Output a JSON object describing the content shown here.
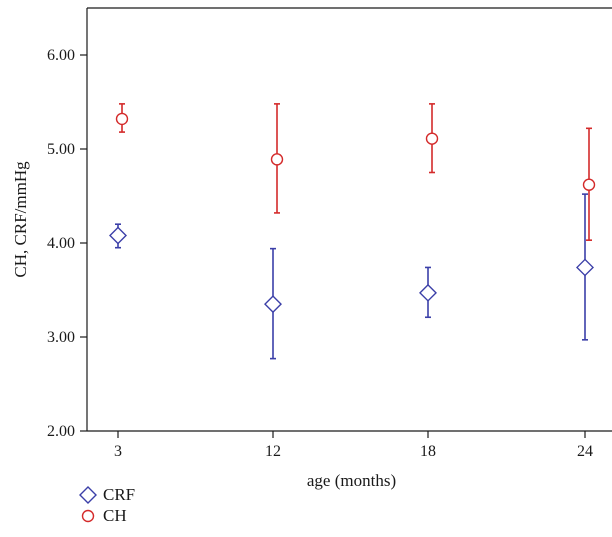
{
  "chart_data": {
    "type": "scatter",
    "xlabel": "age (months)",
    "ylabel": "CH, CRF/mmHg",
    "categories": [
      "3",
      "12",
      "18",
      "24"
    ],
    "ylim": [
      2.0,
      6.5
    ],
    "yticks": [
      "2.00",
      "3.00",
      "4.00",
      "5.00",
      "6.00"
    ],
    "grid": false,
    "legend": "bottom-left",
    "series": [
      {
        "name": "CRF",
        "marker": "diamond",
        "color": "#3b3fa8",
        "values": [
          4.08,
          3.35,
          3.47,
          3.74
        ],
        "error_low": [
          3.95,
          2.77,
          3.21,
          2.97
        ],
        "error_high": [
          4.2,
          3.94,
          3.74,
          4.52
        ]
      },
      {
        "name": "CH",
        "marker": "circle",
        "color": "#d42a2a",
        "values": [
          5.32,
          4.89,
          5.11,
          4.62
        ],
        "error_low": [
          5.18,
          4.32,
          4.75,
          4.03
        ],
        "error_high": [
          5.48,
          5.48,
          5.48,
          5.22
        ]
      }
    ]
  }
}
